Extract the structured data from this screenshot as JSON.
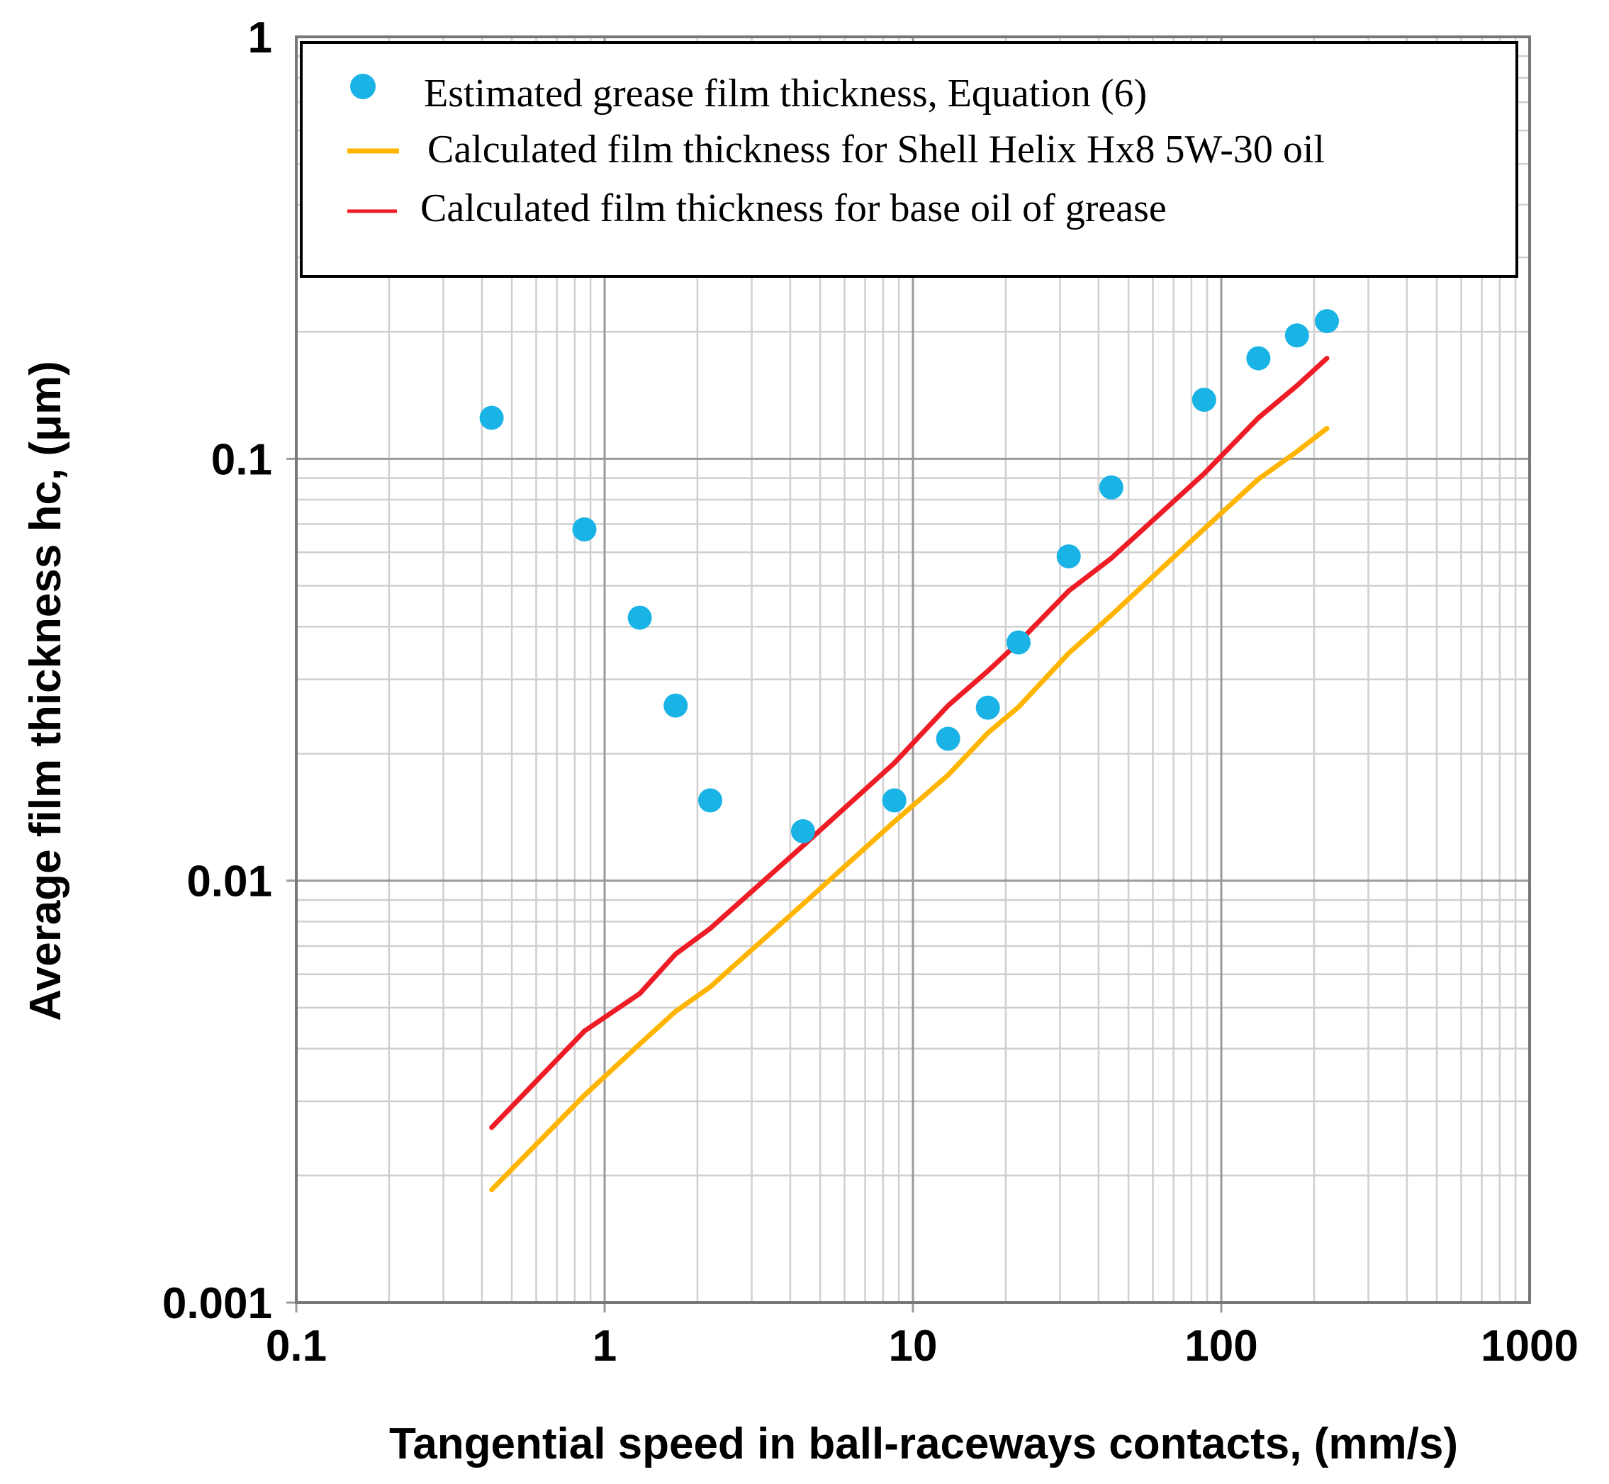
{
  "chart_data": {
    "type": "scatter",
    "xscale": "log",
    "yscale": "log",
    "xlabel": "Tangential speed in ball-raceways contacts, (mm/s)",
    "ylabel": "Average film thickness hc, (μm)",
    "xlim": [
      0.1,
      1000
    ],
    "ylim": [
      0.001,
      1
    ],
    "grid": true,
    "legend_position": "top",
    "xticks": [
      {
        "value": 0.1,
        "label": "0.1"
      },
      {
        "value": 1,
        "label": "1"
      },
      {
        "value": 10,
        "label": "10"
      },
      {
        "value": 100,
        "label": "100"
      },
      {
        "value": 1000,
        "label": "1000"
      }
    ],
    "yticks": [
      {
        "value": 0.001,
        "label": "0.001"
      },
      {
        "value": 0.01,
        "label": "0.01"
      },
      {
        "value": 0.1,
        "label": "0.1"
      },
      {
        "value": 1,
        "label": "1"
      }
    ],
    "series": [
      {
        "name": "Estimated grease film thickness, Equation (6)",
        "kind": "scatter",
        "color": "#1ab3e6",
        "x": [
          0.43,
          0.86,
          1.3,
          1.7,
          2.2,
          4.4,
          8.7,
          13,
          17.5,
          22,
          32,
          44,
          88,
          132,
          176,
          220
        ],
        "y": [
          0.125,
          0.068,
          0.042,
          0.026,
          0.0155,
          0.0131,
          0.0155,
          0.0217,
          0.0257,
          0.0367,
          0.0587,
          0.0855,
          0.138,
          0.173,
          0.196,
          0.212
        ]
      },
      {
        "name": "Calculated film thickness for Shell Helix Hx8 5W-30 oil",
        "kind": "line",
        "color": "#ffb400",
        "x": [
          0.43,
          0.86,
          1.3,
          1.7,
          2.2,
          4.4,
          8.7,
          13,
          17.5,
          22,
          32,
          44,
          88,
          132,
          176,
          220
        ],
        "y": [
          0.00185,
          0.0031,
          0.0041,
          0.0049,
          0.0056,
          0.0088,
          0.0138,
          0.0178,
          0.0224,
          0.0258,
          0.0346,
          0.0426,
          0.0682,
          0.0895,
          0.104,
          0.118
        ]
      },
      {
        "name": "Calculated film thickness for base oil of grease",
        "kind": "line",
        "color": "#ee1c25",
        "x": [
          0.43,
          0.86,
          1.3,
          1.7,
          2.2,
          4.4,
          8.7,
          13,
          17.5,
          22,
          32,
          44,
          88,
          132,
          176,
          220
        ],
        "y": [
          0.0026,
          0.0044,
          0.0054,
          0.0067,
          0.0077,
          0.0121,
          0.019,
          0.026,
          0.0314,
          0.0367,
          0.0486,
          0.0581,
          0.0922,
          0.125,
          0.149,
          0.173
        ]
      }
    ]
  }
}
